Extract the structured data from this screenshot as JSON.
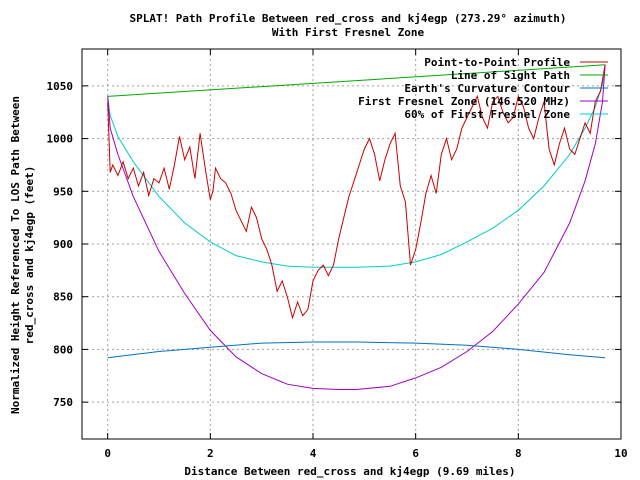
{
  "chart_data": {
    "type": "line",
    "title": "SPLAT! Path Profile Between red_cross and kj4egp (273.29° azimuth)",
    "subtitle": "With First Fresnel Zone",
    "xlabel": "Distance Between red_cross and kj4egp (9.69 miles)",
    "ylabel": [
      "Normalized Height Referenced To LOS Path Between",
      "red_cross and kj4egp (feet)"
    ],
    "xlim": [
      -0.5,
      10
    ],
    "ylim": [
      715,
      1085
    ],
    "xticks": [
      0,
      2,
      4,
      6,
      8,
      10
    ],
    "yticks": [
      750,
      800,
      850,
      900,
      950,
      1000,
      1050
    ],
    "grid": true,
    "legend_position": "top-right",
    "series": [
      {
        "name": "Point-to-Point Profile",
        "color": "#cc0000",
        "x": [
          0,
          0.05,
          0.1,
          0.2,
          0.3,
          0.4,
          0.5,
          0.6,
          0.7,
          0.8,
          0.9,
          1.0,
          1.1,
          1.2,
          1.3,
          1.4,
          1.5,
          1.6,
          1.7,
          1.8,
          1.9,
          2.0,
          2.05,
          2.1,
          2.2,
          2.3,
          2.4,
          2.5,
          2.6,
          2.7,
          2.8,
          2.9,
          3.0,
          3.1,
          3.2,
          3.3,
          3.4,
          3.5,
          3.6,
          3.7,
          3.8,
          3.9,
          4.0,
          4.1,
          4.2,
          4.3,
          4.4,
          4.5,
          4.6,
          4.7,
          4.8,
          4.9,
          5.0,
          5.1,
          5.2,
          5.3,
          5.4,
          5.5,
          5.6,
          5.7,
          5.8,
          5.9,
          6.0,
          6.1,
          6.2,
          6.3,
          6.4,
          6.5,
          6.6,
          6.7,
          6.8,
          6.9,
          7.0,
          7.1,
          7.2,
          7.3,
          7.4,
          7.5,
          7.6,
          7.7,
          7.8,
          7.9,
          8.0,
          8.1,
          8.2,
          8.3,
          8.4,
          8.5,
          8.6,
          8.7,
          8.8,
          8.9,
          9.0,
          9.1,
          9.2,
          9.3,
          9.4,
          9.5,
          9.6,
          9.69
        ],
        "y": [
          1035,
          968,
          975,
          965,
          978,
          962,
          972,
          955,
          968,
          946,
          962,
          958,
          972,
          952,
          975,
          1002,
          980,
          992,
          962,
          1005,
          972,
          942,
          950,
          972,
          962,
          958,
          948,
          932,
          922,
          912,
          935,
          925,
          905,
          895,
          880,
          855,
          865,
          850,
          830,
          845,
          832,
          838,
          865,
          875,
          880,
          870,
          880,
          905,
          925,
          945,
          960,
          975,
          990,
          1000,
          985,
          960,
          980,
          995,
          1005,
          955,
          940,
          880,
          895,
          920,
          948,
          965,
          948,
          985,
          1000,
          980,
          990,
          1010,
          1020,
          1030,
          1040,
          1020,
          1010,
          1035,
          1040,
          1025,
          1015,
          1020,
          1040,
          1030,
          1010,
          1000,
          1020,
          1035,
          990,
          975,
          995,
          1010,
          990,
          985,
          1000,
          1015,
          1005,
          1035,
          1045,
          1070
        ]
      },
      {
        "name": "Line of Sight Path",
        "color": "#00aa00",
        "x": [
          0,
          9.69
        ],
        "y": [
          1040,
          1070
        ]
      },
      {
        "name": "Earth's Curvature Contour",
        "color": "#0070c0",
        "x": [
          0,
          1,
          2,
          3,
          4,
          4.845,
          6,
          7,
          8,
          9,
          9.69
        ],
        "y": [
          792,
          798,
          802,
          806,
          807,
          807,
          806,
          804,
          800,
          795,
          792
        ]
      },
      {
        "name": "First Fresnel Zone (146.520 MHz)",
        "color": "#a000c0",
        "x": [
          0,
          0.05,
          0.2,
          0.5,
          1,
          1.5,
          2,
          2.5,
          3,
          3.5,
          4,
          4.5,
          4.845,
          5.5,
          6,
          6.5,
          7,
          7.5,
          8,
          8.5,
          9,
          9.3,
          9.5,
          9.64,
          9.69
        ],
        "y": [
          1040,
          1010,
          985,
          945,
          893,
          853,
          818,
          793,
          777,
          767,
          763,
          762,
          762,
          765,
          773,
          783,
          798,
          817,
          843,
          873,
          920,
          960,
          995,
          1035,
          1070
        ]
      },
      {
        "name": "60% of First Fresnel Zone",
        "color": "#00cccc",
        "x": [
          0,
          0.05,
          0.2,
          0.5,
          1,
          1.5,
          2,
          2.5,
          3,
          3.5,
          4,
          4.5,
          4.845,
          5.5,
          6,
          6.5,
          7,
          7.5,
          8,
          8.5,
          9,
          9.3,
          9.5,
          9.64,
          9.69
        ],
        "y": [
          1040,
          1022,
          1002,
          978,
          945,
          920,
          902,
          889,
          883,
          879,
          878,
          878,
          878,
          879,
          883,
          890,
          902,
          915,
          932,
          955,
          985,
          1010,
          1030,
          1052,
          1070
        ]
      }
    ]
  }
}
